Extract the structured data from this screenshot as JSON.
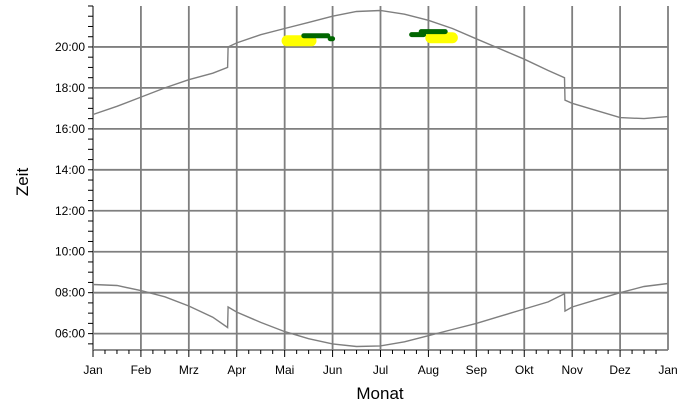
{
  "chart_data": {
    "type": "line",
    "xlabel": "Monat",
    "ylabel": "Zeit",
    "x_ticks": [
      "Jan",
      "Feb",
      "Mrz",
      "Apr",
      "Mai",
      "Jun",
      "Jul",
      "Aug",
      "Sep",
      "Okt",
      "Nov",
      "Dez",
      "Jan"
    ],
    "y_ticks": [
      "06:00",
      "08:00",
      "10:00",
      "12:00",
      "14:00",
      "16:00",
      "18:00",
      "20:00"
    ],
    "xlim": [
      0,
      12
    ],
    "ylim": [
      5.2,
      22
    ],
    "grid": true,
    "series": [
      {
        "role": "sunset",
        "color": "#7f7f7f",
        "x": [
          0,
          0.5,
          1,
          1.5,
          2,
          2.5,
          2.81,
          2.82,
          3,
          3.5,
          4,
          4.5,
          5,
          5.5,
          6,
          6.5,
          7,
          7.5,
          8,
          8.5,
          9,
          9.5,
          9.84,
          9.85,
          10,
          10.5,
          11,
          11.5,
          12
        ],
        "y": [
          16.7,
          17.1,
          17.55,
          18.0,
          18.4,
          18.72,
          19.0,
          20.0,
          20.2,
          20.6,
          20.9,
          21.2,
          21.5,
          21.73,
          21.78,
          21.6,
          21.3,
          20.9,
          20.4,
          19.9,
          19.4,
          18.85,
          18.5,
          17.4,
          17.25,
          16.9,
          16.55,
          16.5,
          16.6
        ]
      },
      {
        "role": "sunrise",
        "color": "#7f7f7f",
        "x": [
          0,
          0.5,
          1,
          1.5,
          2,
          2.5,
          2.81,
          2.82,
          3,
          3.5,
          4,
          4.5,
          5,
          5.5,
          6,
          6.5,
          7,
          7.5,
          8,
          8.5,
          9,
          9.5,
          9.84,
          9.85,
          10,
          10.5,
          11,
          11.5,
          12
        ],
        "y": [
          8.4,
          8.35,
          8.1,
          7.8,
          7.35,
          6.8,
          6.3,
          7.3,
          7.05,
          6.55,
          6.1,
          5.75,
          5.5,
          5.37,
          5.4,
          5.6,
          5.9,
          6.2,
          6.5,
          6.85,
          7.2,
          7.55,
          7.95,
          7.1,
          7.3,
          7.65,
          8.0,
          8.3,
          8.45
        ]
      }
    ],
    "markers": [
      {
        "color": "#006600",
        "x": [
          4.4,
          4.9
        ],
        "y": 20.55
      },
      {
        "color": "#006600",
        "x": [
          4.95,
          5.0
        ],
        "y": 20.4
      },
      {
        "color": "#006600",
        "x": [
          6.85,
          7.35
        ],
        "y": 20.75
      },
      {
        "color": "#006600",
        "x": [
          6.65,
          6.9
        ],
        "y": 20.6
      },
      {
        "color": "#ffff00",
        "x": [
          4.05,
          4.55
        ],
        "y": 20.3
      },
      {
        "color": "#ffff00",
        "x": [
          7.05,
          7.5
        ],
        "y": 20.45
      }
    ]
  }
}
